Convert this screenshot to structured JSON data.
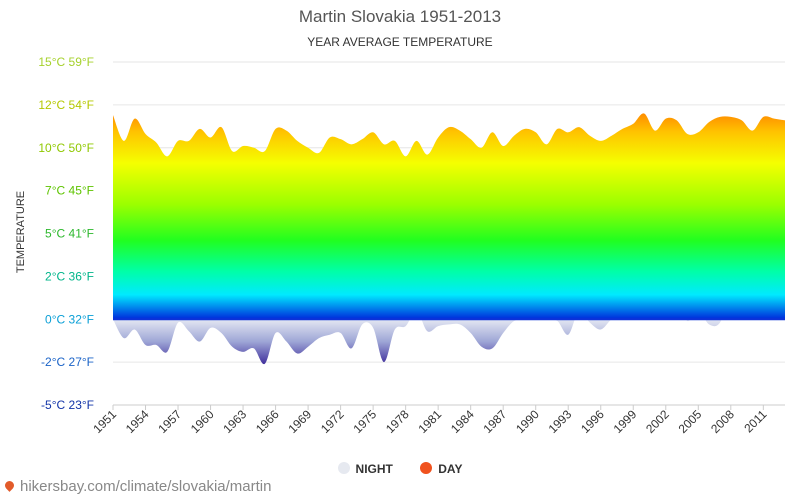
{
  "page": {
    "title": "Martin Slovakia 1951-2013",
    "subtitle": "YEAR AVERAGE TEMPERATURE",
    "footer": "hikersbay.com/climate/slovakia/martin",
    "legend": [
      {
        "label": "NIGHT",
        "color": "#e6e9f0"
      },
      {
        "label": "DAY",
        "color": "#f0521e"
      }
    ]
  },
  "chart_data": {
    "type": "area",
    "title": "Martin Slovakia 1951-2013",
    "subtitle": "YEAR AVERAGE TEMPERATURE",
    "ylabel": "TEMPERATURE",
    "ylim": [
      -5,
      15
    ],
    "y_ticks": [
      {
        "value": 15,
        "label": "15°C 59°F",
        "color": "#a6d12c"
      },
      {
        "value": 12.5,
        "label": "12°C 54°F",
        "color": "#b5c800"
      },
      {
        "value": 10,
        "label": "10°C 50°F",
        "color": "#8fc800"
      },
      {
        "value": 7.5,
        "label": "7°C 45°F",
        "color": "#5ec400"
      },
      {
        "value": 5,
        "label": "5°C 41°F",
        "color": "#2db82d"
      },
      {
        "value": 2.5,
        "label": "2°C 36°F",
        "color": "#00b58a"
      },
      {
        "value": 0,
        "label": "0°C 32°F",
        "color": "#0a9fd6"
      },
      {
        "value": -2.5,
        "label": "-2°C 27°F",
        "color": "#1b63c7"
      },
      {
        "value": -5,
        "label": "-5°C 23°F",
        "color": "#1234a8"
      }
    ],
    "x_tick_labels": [
      "1951",
      "1954",
      "1957",
      "1960",
      "1963",
      "1966",
      "1969",
      "1972",
      "1975",
      "1978",
      "1981",
      "1984",
      "1987",
      "1990",
      "1993",
      "1996",
      "1999",
      "2002",
      "2005",
      "2008",
      "2011"
    ],
    "x_tick_step": 3,
    "grid": true,
    "legend_position": "bottom",
    "series": [
      {
        "name": "DAY",
        "x_start": 1951,
        "values": [
          11.9,
          10.4,
          11.7,
          10.8,
          10.3,
          9.5,
          10.4,
          10.4,
          11.1,
          10.6,
          11.2,
          9.8,
          10.1,
          10.0,
          9.8,
          11.1,
          11.0,
          10.4,
          10.0,
          9.7,
          10.6,
          10.5,
          10.2,
          10.5,
          10.9,
          10.2,
          10.4,
          9.5,
          10.4,
          9.6,
          10.6,
          11.2,
          11.0,
          10.5,
          10.0,
          10.9,
          10.1,
          10.7,
          11.1,
          10.9,
          10.2,
          11.1,
          10.9,
          11.2,
          10.7,
          10.4,
          10.7,
          11.1,
          11.4,
          12.0,
          11.0,
          11.7,
          11.6,
          10.8,
          10.9,
          11.5,
          11.8,
          11.8,
          11.6,
          11.0,
          11.8,
          11.7,
          11.6
        ]
      },
      {
        "name": "NIGHT",
        "x_start": 1951,
        "values": [
          0.0,
          -1.1,
          -0.6,
          -1.5,
          -1.5,
          -1.9,
          -0.2,
          -0.7,
          -1.3,
          -0.5,
          -0.8,
          -1.6,
          -1.9,
          -1.7,
          -2.6,
          -0.8,
          -1.3,
          -2.0,
          -1.6,
          -1.1,
          -0.9,
          -0.8,
          -1.7,
          -0.3,
          -0.5,
          -2.5,
          -0.6,
          -0.4,
          0.5,
          -0.7,
          -0.4,
          -0.3,
          -0.3,
          -0.8,
          -1.6,
          -1.7,
          -0.8,
          -0.1,
          0.0,
          0.0,
          0.0,
          -0.1,
          -0.9,
          0.5,
          -0.2,
          -0.6,
          0.0,
          0.3,
          0.7,
          1.2,
          1.0,
          0.2,
          1.0,
          -0.1,
          0.5,
          -0.3,
          -0.2,
          1.5,
          1.4,
          0.8,
          0.8,
          1.1,
          1.3
        ]
      }
    ]
  }
}
